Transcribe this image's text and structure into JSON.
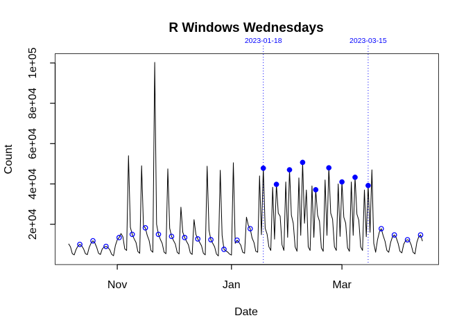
{
  "chart_data": {
    "type": "line",
    "title": "R Windows Wednesdays",
    "xlabel": "Date",
    "ylabel": "Count",
    "grid": false,
    "legend_position": "none",
    "start_date": "2022-10-06",
    "frequency": "daily",
    "ylim": [
      0,
      104000
    ],
    "x_range": [
      "2022-10-06",
      "2023-04-13"
    ],
    "series": [
      {
        "name": "daily-count",
        "values": [
          10300,
          8800,
          5400,
          4800,
          7500,
          9200,
          10000,
          9300,
          7800,
          5400,
          4900,
          8500,
          10600,
          11800,
          10800,
          8600,
          5600,
          5000,
          7800,
          8700,
          9000,
          8500,
          7400,
          5100,
          4400,
          9500,
          12300,
          13400,
          15400,
          13800,
          7800,
          7000,
          54000,
          18500,
          15000,
          12800,
          11000,
          6500,
          5600,
          49000,
          19000,
          18200,
          14500,
          12000,
          7000,
          6100,
          100300,
          20000,
          15000,
          12500,
          10500,
          6200,
          5400,
          47500,
          18000,
          14000,
          12000,
          10200,
          6100,
          5300,
          28500,
          16000,
          13400,
          11500,
          9800,
          5800,
          5000,
          22300,
          15000,
          12700,
          11000,
          9300,
          5600,
          4800,
          48800,
          17000,
          12350,
          10500,
          8800,
          5200,
          4300,
          46800,
          14500,
          7550,
          6800,
          6200,
          5200,
          4700,
          50500,
          10500,
          12100,
          11000,
          9600,
          6100,
          5600,
          23500,
          19500,
          17800,
          13200,
          11000,
          6600,
          6100,
          44000,
          14800,
          47800,
          18000,
          15200,
          8800,
          7000,
          38400,
          12600,
          39800,
          25500,
          24000,
          9800,
          7000,
          41000,
          13500,
          47000,
          24500,
          20500,
          8800,
          6600,
          43000,
          14500,
          50700,
          20500,
          37000,
          8800,
          7000,
          39000,
          13500,
          37100,
          24500,
          21500,
          8300,
          6600,
          42000,
          14500,
          48000,
          25500,
          22500,
          8800,
          7000,
          40000,
          14000,
          41000,
          23500,
          20500,
          8300,
          6600,
          41000,
          14500,
          43300,
          25000,
          22000,
          8800,
          7000,
          37000,
          13800,
          39200,
          16000,
          47000,
          10500,
          6100,
          12300,
          16200,
          17800,
          14400,
          11600,
          7000,
          6100,
          11000,
          13800,
          14700,
          13300,
          10500,
          6600,
          5800,
          10100,
          11900,
          12300,
          11900,
          9700,
          6100,
          5300,
          11000,
          13800,
          14700,
          11600
        ]
      }
    ],
    "y_ticks": [
      {
        "value": 20000,
        "label": "2e+04"
      },
      {
        "value": 40000,
        "label": "4e+04"
      },
      {
        "value": 60000,
        "label": "6e+04"
      },
      {
        "value": 80000,
        "label": "8e+04"
      },
      {
        "value": 100000,
        "label": "1e+05"
      }
    ],
    "x_ticks": [
      {
        "date": "2022-11-01",
        "label": "Nov"
      },
      {
        "date": "2023-01-01",
        "label": "Jan"
      },
      {
        "date": "2023-03-01",
        "label": "Mar"
      }
    ],
    "vlines": [
      {
        "date": "2023-01-18",
        "label": "2023-01-18"
      },
      {
        "date": "2023-03-15",
        "label": "2023-03-15"
      }
    ],
    "wednesday_markers": [
      {
        "date": "2022-10-12",
        "value": 10000,
        "filled": false
      },
      {
        "date": "2022-10-19",
        "value": 11800,
        "filled": false
      },
      {
        "date": "2022-10-26",
        "value": 9000,
        "filled": false
      },
      {
        "date": "2022-11-02",
        "value": 13400,
        "filled": false
      },
      {
        "date": "2022-11-09",
        "value": 15000,
        "filled": false
      },
      {
        "date": "2022-11-16",
        "value": 18200,
        "filled": false
      },
      {
        "date": "2022-11-23",
        "value": 15000,
        "filled": false
      },
      {
        "date": "2022-11-30",
        "value": 14000,
        "filled": false
      },
      {
        "date": "2022-12-07",
        "value": 13400,
        "filled": false
      },
      {
        "date": "2022-12-14",
        "value": 12700,
        "filled": false
      },
      {
        "date": "2022-12-21",
        "value": 12350,
        "filled": false
      },
      {
        "date": "2022-12-28",
        "value": 7550,
        "filled": false
      },
      {
        "date": "2023-01-04",
        "value": 12100,
        "filled": false
      },
      {
        "date": "2023-01-11",
        "value": 17800,
        "filled": false
      },
      {
        "date": "2023-01-18",
        "value": 47800,
        "filled": true
      },
      {
        "date": "2023-01-25",
        "value": 39800,
        "filled": true
      },
      {
        "date": "2023-02-01",
        "value": 47000,
        "filled": true
      },
      {
        "date": "2023-02-08",
        "value": 50700,
        "filled": true
      },
      {
        "date": "2023-02-15",
        "value": 37100,
        "filled": true
      },
      {
        "date": "2023-02-22",
        "value": 48000,
        "filled": true
      },
      {
        "date": "2023-03-01",
        "value": 41000,
        "filled": true
      },
      {
        "date": "2023-03-08",
        "value": 43300,
        "filled": true
      },
      {
        "date": "2023-03-15",
        "value": 39200,
        "filled": true
      },
      {
        "date": "2023-03-22",
        "value": 17800,
        "filled": false
      },
      {
        "date": "2023-03-29",
        "value": 14700,
        "filled": false
      },
      {
        "date": "2023-04-05",
        "value": 12300,
        "filled": false
      },
      {
        "date": "2023-04-12",
        "value": 14700,
        "filled": false
      }
    ],
    "colors": {
      "line": "#000000",
      "highlight": "#0000ff",
      "background": "#ffffff"
    }
  }
}
